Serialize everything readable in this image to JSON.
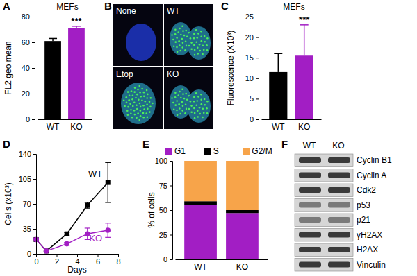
{
  "panel_labels": [
    "A",
    "B",
    "C",
    "D",
    "E",
    "F"
  ],
  "chart_data": [
    {
      "type": "bar",
      "title": "MEFs",
      "y_label": "FL2 geo mean",
      "categories": [
        "WT",
        "KO"
      ],
      "values": [
        61,
        71
      ],
      "errors": [
        2,
        1.5
      ],
      "colors": [
        "#000000",
        "#a21ec4"
      ],
      "ylim": [
        0,
        80
      ],
      "yticks": [
        0,
        20,
        40,
        60,
        80
      ],
      "annotations": [
        {
          "text": "***",
          "category": "KO"
        }
      ]
    },
    {
      "type": "bar",
      "title": "MEFs",
      "y_label": "Fluorescence (X10³)",
      "categories": [
        "WT",
        "KO"
      ],
      "values": [
        11.5,
        15.5
      ],
      "errors": [
        4.5,
        7.5
      ],
      "colors": [
        "#000000",
        "#a21ec4"
      ],
      "ylim": [
        0,
        25
      ],
      "yticks": [
        0,
        5,
        10,
        15,
        20,
        25
      ],
      "annotations": [
        {
          "text": "***",
          "category": "KO"
        }
      ]
    },
    {
      "type": "line",
      "x_label": "Days",
      "y_label": "Cells (x10³)",
      "x": [
        0,
        1,
        3,
        5,
        7
      ],
      "xlim": [
        0,
        8
      ],
      "xticks": [
        0,
        2,
        4,
        6,
        8
      ],
      "ylim": [
        0,
        140
      ],
      "yticks": [
        0,
        35,
        70,
        105,
        140
      ],
      "series": [
        {
          "name": "WT",
          "color": "#000000",
          "marker": "square",
          "values": [
            20,
            4,
            28,
            68,
            100
          ],
          "errors": [
            2,
            1,
            2,
            4,
            28
          ]
        },
        {
          "name": "KO",
          "color": "#a21ec4",
          "marker": "circle",
          "values": [
            20,
            4,
            14,
            28,
            33
          ],
          "errors": [
            2,
            1,
            2,
            8,
            10
          ]
        }
      ]
    },
    {
      "type": "bar",
      "stacked": true,
      "legend": "top",
      "y_label": "% of cells",
      "categories": [
        "WT",
        "KO"
      ],
      "ylim": [
        0,
        100
      ],
      "yticks": [
        0,
        25,
        50,
        75,
        100
      ],
      "series": [
        {
          "name": "G1",
          "color": "#a21ec4",
          "values": [
            55,
            47
          ]
        },
        {
          "name": "S",
          "color": "#000000",
          "values": [
            4,
            3
          ]
        },
        {
          "name": "G2/M",
          "color": "#f7a44a",
          "values": [
            41,
            50
          ]
        }
      ]
    }
  ],
  "images": {
    "labels": [
      "None",
      "WT",
      "Etop",
      "KO"
    ]
  },
  "blot": {
    "lanes": [
      "WT",
      "KO"
    ],
    "rows": [
      "Cyclin B1",
      "Cyclin A",
      "Cdk2",
      "p53",
      "p21",
      "γH2AX",
      "H2AX",
      "Vinculin"
    ]
  }
}
